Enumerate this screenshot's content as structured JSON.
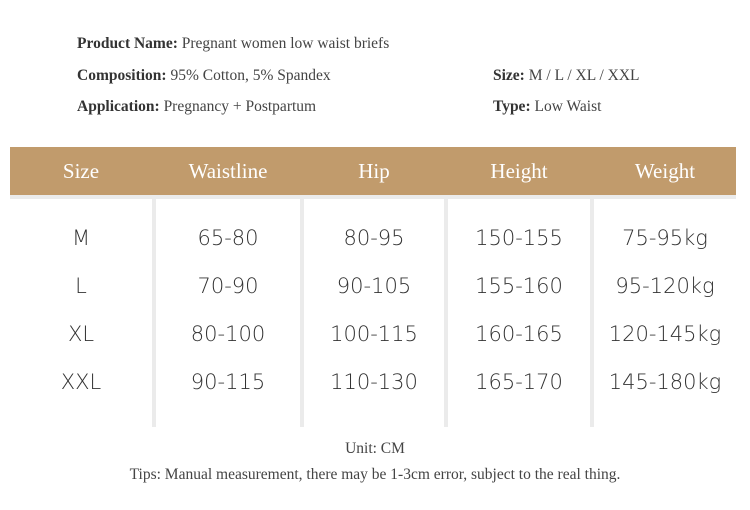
{
  "info": {
    "left": [
      {
        "label": "Product Name:",
        "value": "Pregnant women low waist briefs"
      },
      {
        "label": "Composition:",
        "value": "95% Cotton, 5% Spandex"
      },
      {
        "label": "Application:",
        "value": "Pregnancy + Postpartum"
      }
    ],
    "right": [
      {
        "label": "Size:",
        "value": "M / L / XL / XXL"
      },
      {
        "label": "Type:",
        "value": "Low Waist"
      }
    ]
  },
  "table": {
    "header": [
      "Size",
      "Waistline",
      "Hip",
      "Height",
      "Weight"
    ],
    "rows": [
      [
        "M",
        "65-80",
        "80-95",
        "150-155",
        "75-95kg"
      ],
      [
        "L",
        "70-90",
        "90-105",
        "155-160",
        "95-120kg"
      ],
      [
        "XL",
        "80-100",
        "100-115",
        "160-165",
        "120-145kg"
      ],
      [
        "XXL",
        "90-115",
        "110-130",
        "165-170",
        "145-180kg"
      ]
    ]
  },
  "footer": {
    "unit": "Unit: CM",
    "tips": "Tips: Manual measurement, there may be 1-3cm error, subject to the real thing."
  }
}
